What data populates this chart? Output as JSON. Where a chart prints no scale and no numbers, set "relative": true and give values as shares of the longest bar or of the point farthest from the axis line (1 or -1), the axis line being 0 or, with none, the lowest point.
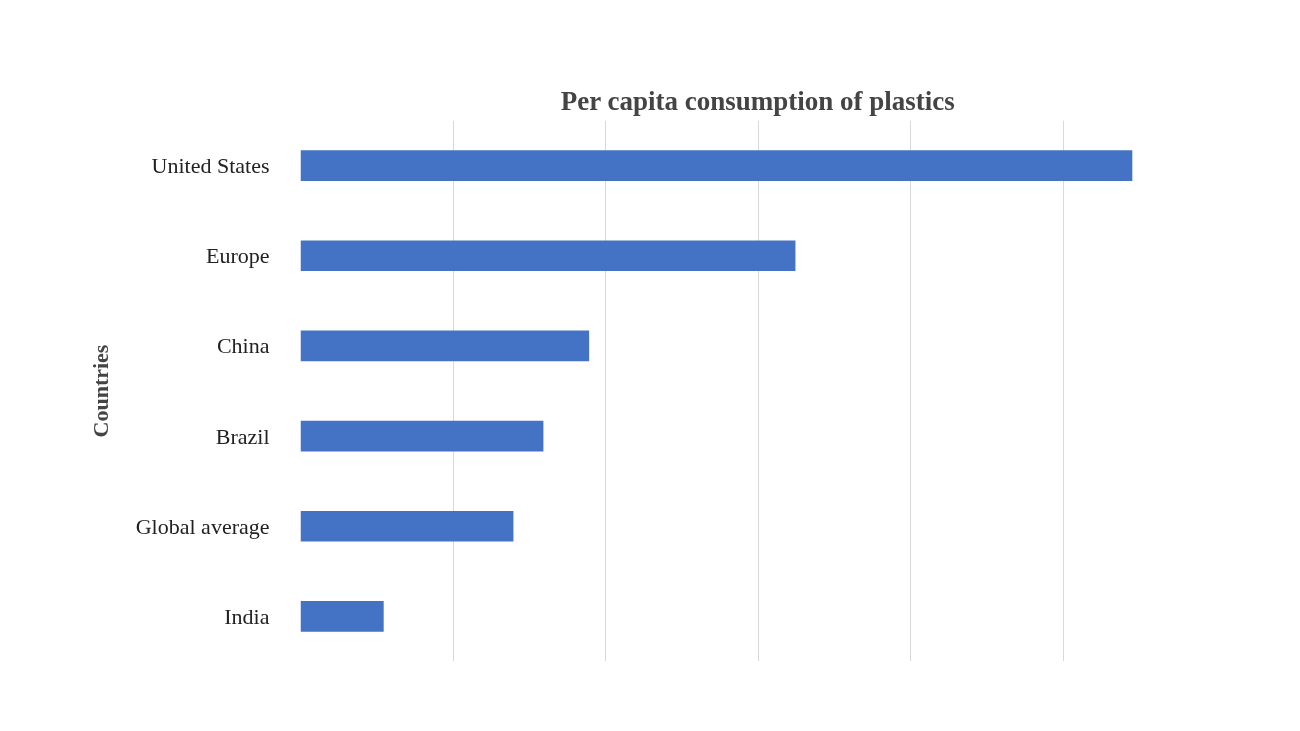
{
  "chart_data": {
    "type": "bar",
    "orientation": "horizontal",
    "relative": true,
    "title": "Per capita consumption of plastics",
    "ylabel": "Countries",
    "categories": [
      "United States",
      "Europe",
      "China",
      "Brazil",
      "Global average",
      "India"
    ],
    "values": [
      1,
      0.595,
      0.347,
      0.292,
      0.256,
      0.1
    ],
    "color": "#4472c4",
    "grid": "x"
  }
}
